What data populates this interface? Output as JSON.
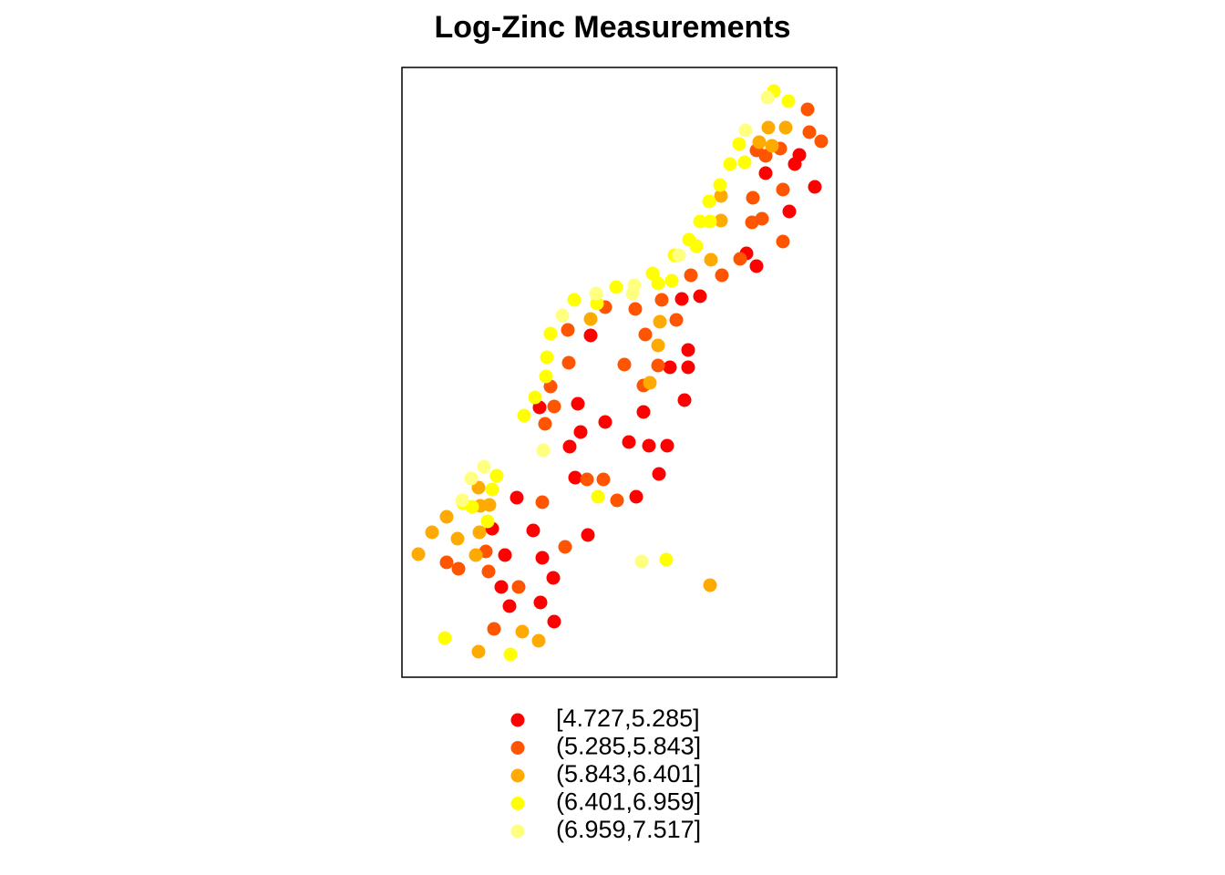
{
  "chart_data": {
    "type": "scatter",
    "title": "Log-Zinc Measurements",
    "xlim": [
      441,
      918
    ],
    "ylim": [
      743,
      74
    ],
    "legend": "bottom",
    "series": [
      {
        "name": "[4.727,5.285]",
        "color": "#FF0000",
        "x": [
          648,
          592,
          634,
          664,
          637,
          625,
          690,
          706,
          712,
          732,
          631,
          723,
          698,
          567,
          540,
          585,
          554,
          595,
          645,
          607,
          550,
          559,
          593,
          608,
          735,
          755,
          755,
          751,
          748,
          768,
          830,
          866,
          872,
          877,
          894,
          840,
          819
        ],
        "y": [
          368,
          447,
          443,
          463,
          474,
          490,
          485,
          452,
          489,
          489,
          524,
          520,
          545,
          546,
          580,
          582,
          609,
          612,
          587,
          634,
          644,
          665,
          661,
          682,
          403,
          403,
          384,
          439,
          328,
          325,
          292,
          232,
          180,
          170,
          205,
          190,
          278
        ]
      },
      {
        "name": "(5.285,5.843]",
        "color": "#FF5500",
        "x": [
          623,
          624,
          604,
          598,
          608,
          644,
          662,
          677,
          685,
          697,
          708,
          722,
          706,
          726,
          742,
          758,
          792,
          812,
          825,
          826,
          836,
          859,
          859,
          840,
          856,
          888,
          901,
          886,
          830,
          664,
          595,
          620,
          490,
          503,
          533,
          536,
          569,
          542
        ],
        "y": [
          362,
          398,
          424,
          465,
          446,
          526,
          526,
          549,
          400,
          339,
          367,
          401,
          423,
          329,
          351,
          302,
          302,
          284,
          244,
          217,
          240,
          265,
          208,
          171,
          163,
          145,
          155,
          120,
          165,
          337,
          551,
          600,
          617,
          624,
          605,
          627,
          644,
          690
        ]
      },
      {
        "name": "(5.843,6.401]",
        "color": "#FFAA00",
        "x": [
          459,
          474,
          490,
          502,
          525,
          527,
          526,
          522,
          537,
          573,
          591,
          525,
          779,
          648,
          724,
          722,
          713,
          791,
          791,
          780,
          843,
          862,
          833,
          847
        ],
        "y": [
          608,
          584,
          567,
          591,
          535,
          555,
          584,
          609,
          554,
          693,
          703,
          715,
          642,
          350,
          353,
          379,
          420,
          215,
          242,
          285,
          140,
          140,
          156,
          160
        ]
      },
      {
        "name": "(6.401,6.959]",
        "color": "#FFFF00",
        "x": [
          488,
          560,
          731,
          656,
          545,
          540,
          508,
          518,
          535,
          575,
          587,
          599,
          600,
          604,
          630,
          655,
          676,
          716,
          722,
          737,
          740,
          756,
          764,
          768,
          779,
          778,
          790,
          801,
          811,
          817,
          849,
          865
        ],
        "y": [
          700,
          718,
          614,
          545,
          522,
          537,
          552,
          556,
          572,
          456,
          436,
          413,
          392,
          366,
          329,
          333,
          315,
          300,
          311,
          308,
          280,
          263,
          270,
          243,
          243,
          221,
          203,
          180,
          158,
          178,
          100,
          111
        ]
      },
      {
        "name": "(6.959,7.517]",
        "color": "#FFFF80",
        "x": [
          517,
          596,
          704,
          507,
          617,
          654,
          696,
          694,
          745,
          818,
          842,
          531
        ],
        "y": [
          525,
          494,
          616,
          549,
          346,
          322,
          313,
          322,
          280,
          143,
          107,
          512
        ]
      }
    ]
  }
}
